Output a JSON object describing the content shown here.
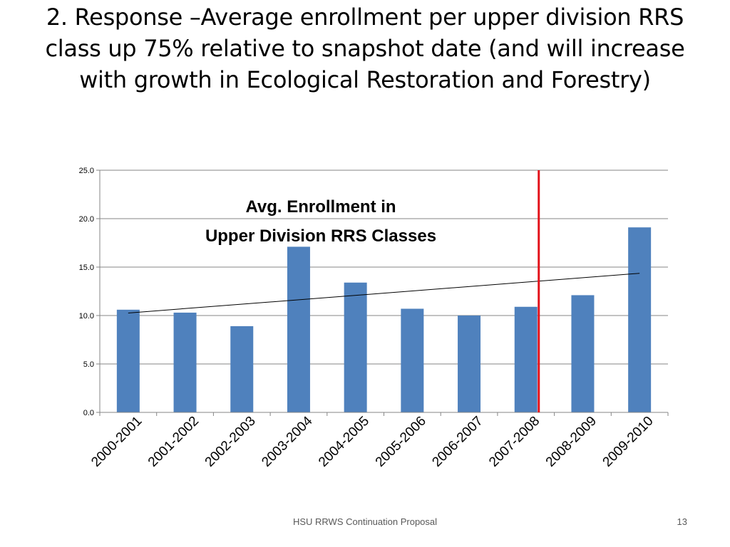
{
  "slide": {
    "title": "2. Response –Average enrollment per upper division RRS class up 75% relative to snapshot date (and will increase with growth in Ecological Restoration and Forestry)",
    "footer": "HSU RRWS Continuation Proposal",
    "page_number": "13"
  },
  "chart_data": {
    "type": "bar",
    "title": "",
    "xlabel": "",
    "ylabel": "",
    "annotation_lines": [
      "Avg. Enrollment in",
      "Upper Division RRS Classes"
    ],
    "categories": [
      "2000-2001",
      "2001-2002",
      "2002-2003",
      "2003-2004",
      "2004-2005",
      "2005-2006",
      "2006-2007",
      "2007-2008",
      "2008-2009",
      "2009-2010"
    ],
    "values": [
      10.6,
      10.3,
      8.9,
      17.1,
      13.4,
      10.7,
      10.0,
      10.9,
      12.1,
      19.1
    ],
    "ylim": [
      0,
      25
    ],
    "yticks": [
      0,
      5,
      10,
      15,
      20,
      25
    ],
    "ytick_labels": [
      "0.0",
      "5.0",
      "10.0",
      "15.0",
      "20.0",
      "25.0"
    ],
    "grid": true,
    "legend": "none",
    "trendline": {
      "type": "linear"
    },
    "reference_line": {
      "after_category": "2007-2008",
      "color": "#e3131b"
    },
    "colors": {
      "bar": "#4f81bd",
      "trendline": "#000000",
      "grid": "#868686"
    }
  }
}
